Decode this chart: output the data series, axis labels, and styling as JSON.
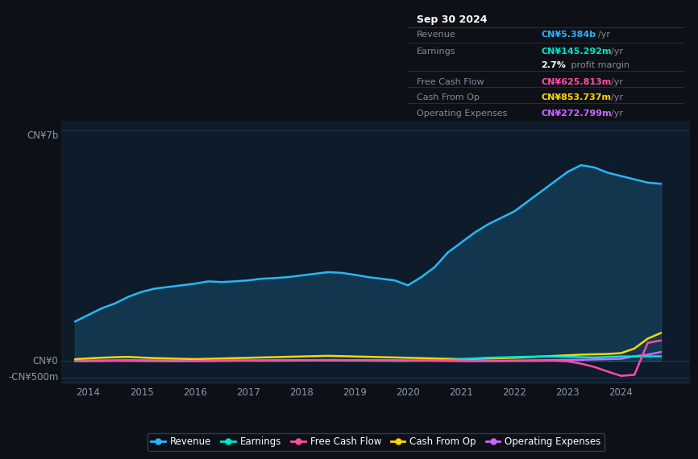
{
  "bg_color": "#0d1117",
  "plot_bg_color": "#0d1b2a",
  "grid_color": "#253555",
  "title_box": {
    "date": "Sep 30 2024",
    "rows": [
      {
        "label": "Revenue",
        "value": "CN¥5.384b",
        "suffix": "/yr",
        "value_color": "#29b6f6"
      },
      {
        "label": "Earnings",
        "value": "CN¥145.292m",
        "suffix": "/yr",
        "value_color": "#00e5cc"
      },
      {
        "label": "",
        "value": "2.7%",
        "suffix": " profit margin",
        "value_color": "#ffffff"
      },
      {
        "label": "Free Cash Flow",
        "value": "CN¥625.813m",
        "suffix": "/yr",
        "value_color": "#ff4da6"
      },
      {
        "label": "Cash From Op",
        "value": "CN¥853.737m",
        "suffix": "/yr",
        "value_color": "#ffd700"
      },
      {
        "label": "Operating Expenses",
        "value": "CN¥272.799m",
        "suffix": "/yr",
        "value_color": "#cc66ff"
      }
    ]
  },
  "ylabel_top": "CN¥7b",
  "ylabel_zero": "CN¥0",
  "ylabel_neg": "-CN¥500m",
  "xlim": [
    2013.5,
    2025.3
  ],
  "ylim": [
    -650000000,
    7300000000
  ],
  "xticks": [
    2014,
    2015,
    2016,
    2017,
    2018,
    2019,
    2020,
    2021,
    2022,
    2023,
    2024
  ],
  "series": {
    "Revenue": {
      "color": "#29b6f6",
      "x": [
        2013.75,
        2014.0,
        2014.25,
        2014.5,
        2014.75,
        2015.0,
        2015.25,
        2015.5,
        2015.75,
        2016.0,
        2016.25,
        2016.5,
        2016.75,
        2017.0,
        2017.25,
        2017.5,
        2017.75,
        2018.0,
        2018.25,
        2018.5,
        2018.75,
        2019.0,
        2019.25,
        2019.5,
        2019.75,
        2020.0,
        2020.25,
        2020.5,
        2020.75,
        2021.0,
        2021.25,
        2021.5,
        2021.75,
        2022.0,
        2022.25,
        2022.5,
        2022.75,
        2023.0,
        2023.25,
        2023.5,
        2023.75,
        2024.0,
        2024.25,
        2024.5,
        2024.75
      ],
      "y": [
        1200000000.0,
        1400000000.0,
        1600000000.0,
        1750000000.0,
        1950000000.0,
        2100000000.0,
        2200000000.0,
        2250000000.0,
        2300000000.0,
        2350000000.0,
        2420000000.0,
        2400000000.0,
        2420000000.0,
        2450000000.0,
        2500000000.0,
        2520000000.0,
        2550000000.0,
        2600000000.0,
        2650000000.0,
        2700000000.0,
        2680000000.0,
        2620000000.0,
        2550000000.0,
        2500000000.0,
        2450000000.0,
        2300000000.0,
        2550000000.0,
        2850000000.0,
        3300000000.0,
        3600000000.0,
        3900000000.0,
        4150000000.0,
        4350000000.0,
        4550000000.0,
        4850000000.0,
        5150000000.0,
        5450000000.0,
        5750000000.0,
        5950000000.0,
        5880000000.0,
        5720000000.0,
        5620000000.0,
        5520000000.0,
        5420000000.0,
        5384000000.0
      ]
    },
    "Earnings": {
      "color": "#00e5cc",
      "x": [
        2013.75,
        2014.0,
        2014.25,
        2014.5,
        2014.75,
        2015.0,
        2015.25,
        2015.5,
        2015.75,
        2016.0,
        2016.25,
        2016.5,
        2016.75,
        2017.0,
        2017.25,
        2017.5,
        2017.75,
        2018.0,
        2018.25,
        2018.5,
        2018.75,
        2019.0,
        2019.25,
        2019.5,
        2019.75,
        2020.0,
        2020.25,
        2020.5,
        2020.75,
        2021.0,
        2021.25,
        2021.5,
        2021.75,
        2022.0,
        2022.25,
        2022.5,
        2022.75,
        2023.0,
        2023.25,
        2023.5,
        2023.75,
        2024.0,
        2024.25,
        2024.5,
        2024.75
      ],
      "y": [
        5000000.0,
        8000000.0,
        10000000.0,
        12000000.0,
        15000000.0,
        12000000.0,
        10000000.0,
        8000000.0,
        5000000.0,
        5000000.0,
        8000000.0,
        10000000.0,
        12000000.0,
        10000000.0,
        8000000.0,
        8000000.0,
        10000000.0,
        15000000.0,
        20000000.0,
        18000000.0,
        15000000.0,
        12000000.0,
        10000000.0,
        8000000.0,
        5000000.0,
        5000000.0,
        10000000.0,
        20000000.0,
        30000000.0,
        50000000.0,
        80000000.0,
        100000000.0,
        110000000.0,
        120000000.0,
        130000000.0,
        140000000.0,
        135000000.0,
        125000000.0,
        118000000.0,
        108000000.0,
        125000000.0,
        140000000.0,
        138000000.0,
        143000000.0,
        145292000.0
      ]
    },
    "FreeCashFlow": {
      "color": "#ff4da6",
      "x": [
        2013.75,
        2014.0,
        2014.25,
        2014.5,
        2014.75,
        2015.0,
        2015.25,
        2015.5,
        2015.75,
        2016.0,
        2016.25,
        2016.5,
        2016.75,
        2017.0,
        2017.25,
        2017.5,
        2017.75,
        2018.0,
        2018.25,
        2018.5,
        2018.75,
        2019.0,
        2019.25,
        2019.5,
        2019.75,
        2020.0,
        2020.25,
        2020.5,
        2020.75,
        2021.0,
        2021.25,
        2021.5,
        2021.75,
        2022.0,
        2022.25,
        2022.5,
        2022.75,
        2023.0,
        2023.25,
        2023.5,
        2023.75,
        2024.0,
        2024.25,
        2024.5,
        2024.75
      ],
      "y": [
        -5000000.0,
        -3000000.0,
        0,
        5000000.0,
        3000000.0,
        0,
        -3000000.0,
        -5000000.0,
        -3000000.0,
        0,
        3000000.0,
        5000000.0,
        8000000.0,
        10000000.0,
        12000000.0,
        15000000.0,
        18000000.0,
        20000000.0,
        25000000.0,
        30000000.0,
        28000000.0,
        25000000.0,
        22000000.0,
        20000000.0,
        18000000.0,
        15000000.0,
        12000000.0,
        8000000.0,
        5000000.0,
        0,
        -5000000.0,
        -3000000.0,
        -2000000.0,
        0,
        2000000.0,
        5000000.0,
        8000000.0,
        -10000000.0,
        -80000000.0,
        -180000000.0,
        -320000000.0,
        -450000000.0,
        -420000000.0,
        550000000.0,
        625813000.0
      ]
    },
    "CashFromOp": {
      "color": "#ffd700",
      "x": [
        2013.75,
        2014.0,
        2014.25,
        2014.5,
        2014.75,
        2015.0,
        2015.25,
        2015.5,
        2015.75,
        2016.0,
        2016.25,
        2016.5,
        2016.75,
        2017.0,
        2017.25,
        2017.5,
        2017.75,
        2018.0,
        2018.25,
        2018.5,
        2018.75,
        2019.0,
        2019.25,
        2019.5,
        2019.75,
        2020.0,
        2020.25,
        2020.5,
        2020.75,
        2021.0,
        2021.25,
        2021.5,
        2021.75,
        2022.0,
        2022.25,
        2022.5,
        2022.75,
        2023.0,
        2023.25,
        2023.5,
        2023.75,
        2024.0,
        2024.25,
        2024.5,
        2024.75
      ],
      "y": [
        55000000.0,
        80000000.0,
        100000000.0,
        115000000.0,
        125000000.0,
        105000000.0,
        88000000.0,
        78000000.0,
        68000000.0,
        58000000.0,
        68000000.0,
        78000000.0,
        88000000.0,
        98000000.0,
        108000000.0,
        118000000.0,
        128000000.0,
        138000000.0,
        148000000.0,
        158000000.0,
        148000000.0,
        138000000.0,
        128000000.0,
        118000000.0,
        108000000.0,
        98000000.0,
        88000000.0,
        78000000.0,
        68000000.0,
        58000000.0,
        68000000.0,
        78000000.0,
        88000000.0,
        98000000.0,
        115000000.0,
        135000000.0,
        155000000.0,
        175000000.0,
        195000000.0,
        205000000.0,
        215000000.0,
        240000000.0,
        380000000.0,
        680000000.0,
        853737000.0
      ]
    },
    "OperatingExpenses": {
      "color": "#cc66ff",
      "x": [
        2013.75,
        2014.0,
        2014.25,
        2014.5,
        2014.75,
        2015.0,
        2015.25,
        2015.5,
        2015.75,
        2016.0,
        2016.25,
        2016.5,
        2016.75,
        2017.0,
        2017.25,
        2017.5,
        2017.75,
        2018.0,
        2018.25,
        2018.5,
        2018.75,
        2019.0,
        2019.25,
        2019.5,
        2019.75,
        2020.0,
        2020.25,
        2020.5,
        2020.75,
        2021.0,
        2021.25,
        2021.5,
        2021.75,
        2022.0,
        2022.25,
        2022.5,
        2022.75,
        2023.0,
        2023.25,
        2023.5,
        2023.75,
        2024.0,
        2024.25,
        2024.5,
        2024.75
      ],
      "y": [
        8000000.0,
        10000000.0,
        12000000.0,
        15000000.0,
        18000000.0,
        16000000.0,
        14000000.0,
        11000000.0,
        9000000.0,
        7000000.0,
        9000000.0,
        11000000.0,
        13000000.0,
        15000000.0,
        17000000.0,
        19000000.0,
        21000000.0,
        24000000.0,
        27000000.0,
        29000000.0,
        27000000.0,
        24000000.0,
        21000000.0,
        19000000.0,
        17000000.0,
        14000000.0,
        11000000.0,
        9000000.0,
        7000000.0,
        5000000.0,
        7000000.0,
        9000000.0,
        11000000.0,
        14000000.0,
        18000000.0,
        23000000.0,
        28000000.0,
        33000000.0,
        38000000.0,
        48000000.0,
        58000000.0,
        68000000.0,
        145000000.0,
        195000000.0,
        272799000.0
      ]
    }
  },
  "legend": [
    {
      "label": "Revenue",
      "color": "#29b6f6"
    },
    {
      "label": "Earnings",
      "color": "#00e5cc"
    },
    {
      "label": "Free Cash Flow",
      "color": "#ff4da6"
    },
    {
      "label": "Cash From Op",
      "color": "#ffd700"
    },
    {
      "label": "Operating Expenses",
      "color": "#cc66ff"
    }
  ],
  "text_color": "#8899aa",
  "text_color_bright": "#ffffff",
  "box_bg": "#050d18",
  "box_border": "#2a3a50"
}
